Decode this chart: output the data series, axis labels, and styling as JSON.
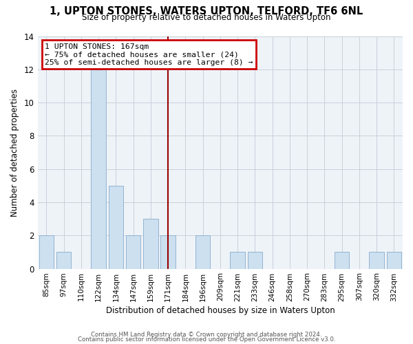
{
  "title": "1, UPTON STONES, WATERS UPTON, TELFORD, TF6 6NL",
  "subtitle": "Size of property relative to detached houses in Waters Upton",
  "xlabel": "Distribution of detached houses by size in Waters Upton",
  "ylabel": "Number of detached properties",
  "bar_labels": [
    "85sqm",
    "97sqm",
    "110sqm",
    "122sqm",
    "134sqm",
    "147sqm",
    "159sqm",
    "171sqm",
    "184sqm",
    "196sqm",
    "209sqm",
    "221sqm",
    "233sqm",
    "246sqm",
    "258sqm",
    "270sqm",
    "283sqm",
    "295sqm",
    "307sqm",
    "320sqm",
    "332sqm"
  ],
  "bar_values": [
    2,
    1,
    0,
    12,
    5,
    2,
    3,
    2,
    0,
    2,
    0,
    1,
    1,
    0,
    0,
    0,
    0,
    1,
    0,
    1,
    1
  ],
  "bar_color": "#cce0f0",
  "bar_edge_color": "#88aacc",
  "bar_width": 0.85,
  "ylim": [
    0,
    14
  ],
  "yticks": [
    0,
    2,
    4,
    6,
    8,
    10,
    12,
    14
  ],
  "vline_x": 7.0,
  "vline_color": "#990000",
  "annotation_title": "1 UPTON STONES: 167sqm",
  "annotation_line1": "← 75% of detached houses are smaller (24)",
  "annotation_line2": "25% of semi-detached houses are larger (8) →",
  "annotation_box_color": "#cc0000",
  "footer1": "Contains HM Land Registry data © Crown copyright and database right 2024.",
  "footer2": "Contains public sector information licensed under the Open Government Licence v3.0.",
  "bg_color": "#eef3f8",
  "grid_color": "#c8d0da"
}
